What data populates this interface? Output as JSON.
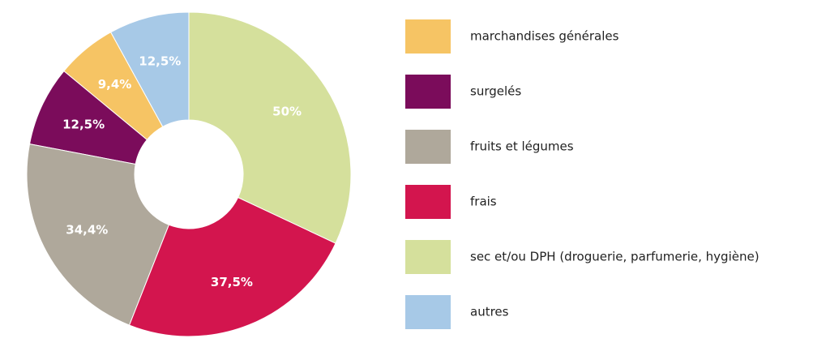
{
  "chart_data": {
    "type": "pie",
    "series": [
      {
        "name": "marchandises générales",
        "color": "#f6c464",
        "values": [
          9.4
        ],
        "value_labels": [
          "9,4%"
        ]
      },
      {
        "name": "surgelés",
        "color": "#7b0c5b",
        "values": [
          12.5
        ],
        "value_labels": [
          "12,5%"
        ]
      },
      {
        "name": "fruits et légumes",
        "color": "#afa89b",
        "values": [
          34.4
        ],
        "value_labels": [
          "34,4%"
        ]
      },
      {
        "name": "frais",
        "color": "#d3154e",
        "values": [
          37.5
        ],
        "value_labels": [
          "37,5%"
        ]
      },
      {
        "name": "sec et/ou DPH (droguerie, parfumerie, hygiène)",
        "color": "#d5e09c",
        "values": [
          50
        ],
        "value_labels": [
          "50%"
        ]
      },
      {
        "name": "autres",
        "color": "#a7c9e7",
        "values": [
          12.5
        ],
        "value_labels": [
          "12,5%"
        ]
      }
    ]
  }
}
